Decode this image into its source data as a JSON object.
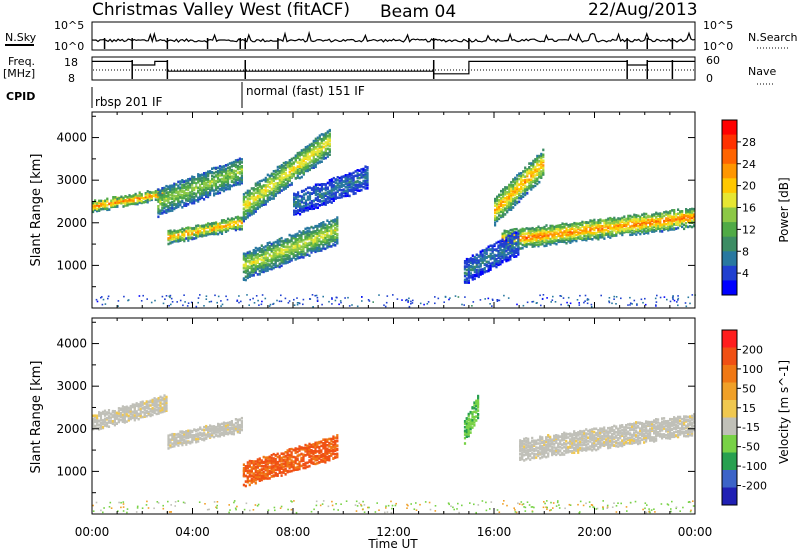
{
  "header": {
    "station": "Christmas Valley West (fitACF)",
    "beam": "Beam 04",
    "date": "22/Aug/2013"
  },
  "status": {
    "nsky_label": "N.Sky",
    "nsky_ticks": [
      "10^5",
      "10^0"
    ],
    "nsearch_label": "N.Search",
    "nsearch_ticks": [
      "10^5",
      "10^0"
    ],
    "freq_label": [
      "Freq.",
      "[MHz]"
    ],
    "freq_ticks": [
      "18",
      "8"
    ],
    "nave_label": "Nave",
    "nave_ticks": [
      "60",
      "0"
    ],
    "cpid_label": "CPID",
    "cpid_segments": [
      {
        "name": "rbsp 201 IF",
        "start_hour": 0,
        "end_hour": 6.0
      },
      {
        "name": "normal (fast) 151 IF",
        "start_hour": 6.0,
        "end_hour": 24
      }
    ],
    "freq_steps": [
      {
        "start_hour": 0.0,
        "mhz": 16.5
      },
      {
        "start_hour": 1.6,
        "mhz": 14.5
      },
      {
        "start_hour": 2.5,
        "mhz": 16.5
      },
      {
        "start_hour": 3.0,
        "mhz": 11.0
      },
      {
        "start_hour": 13.6,
        "mhz": 9.5
      },
      {
        "start_hour": 15.0,
        "mhz": 16.5
      },
      {
        "start_hour": 21.3,
        "mhz": 14.5
      },
      {
        "start_hour": 22.1,
        "mhz": 16.5
      }
    ]
  },
  "chart_data": [
    {
      "type": "heatmap",
      "panel": "power",
      "ylabel": "Slant Range [km]",
      "xlabel": "Time UT",
      "xlim": [
        0,
        24
      ],
      "ylim": [
        0,
        4600
      ],
      "xticks": [
        "00:00",
        "04:00",
        "08:00",
        "12:00",
        "16:00",
        "20:00",
        "00:00"
      ],
      "yticks": [
        1000,
        2000,
        3000,
        4000
      ],
      "colorbar": {
        "label": "Power [dB]",
        "ticks": [
          "28",
          "24",
          "20",
          "16",
          "12",
          "8",
          "4"
        ],
        "colors": [
          "#0000ff",
          "#2040d0",
          "#2878a0",
          "#3c8c64",
          "#50aa46",
          "#8cc846",
          "#e6e632",
          "#ffc800",
          "#ff9600",
          "#ff6400",
          "#ff3200",
          "#ff0000"
        ]
      },
      "features": [
        {
          "name": "F-region band",
          "t_start": 0.0,
          "t_end": 2.9,
          "range_start_km": 2300,
          "range_end_km": 2850,
          "peak_db": 24
        },
        {
          "name": "rising echo",
          "t_start": 3.0,
          "t_end": 6.0,
          "range_start_km": 1550,
          "range_end_km": 2200,
          "peak_db": 22
        },
        {
          "name": "upper rising echo",
          "t_start": 2.6,
          "t_end": 6.0,
          "range_start_km": 2200,
          "range_end_km": 3600,
          "peak_db": 14
        },
        {
          "name": "morning rising echo",
          "t_start": 6.0,
          "t_end": 9.8,
          "range_start_km": 700,
          "range_end_km": 2200,
          "peak_db": 16
        },
        {
          "name": "second-hop echo",
          "t_start": 6.0,
          "t_end": 9.5,
          "range_start_km": 2100,
          "range_end_km": 4300,
          "peak_db": 18
        },
        {
          "name": "weak scatter",
          "t_start": 8.0,
          "t_end": 11.0,
          "range_start_km": 2200,
          "range_end_km": 3400,
          "peak_db": 6
        },
        {
          "name": "afternoon echo",
          "t_start": 16.3,
          "t_end": 24.0,
          "range_start_km": 1400,
          "range_end_km": 2400,
          "peak_db": 24
        },
        {
          "name": "afternoon descending",
          "t_start": 16.0,
          "t_end": 18.0,
          "range_start_km": 2000,
          "range_end_km": 3800,
          "peak_db": 22
        },
        {
          "name": "evening near-range",
          "t_start": 14.8,
          "t_end": 17.0,
          "range_start_km": 600,
          "range_end_km": 1900,
          "peak_db": 6
        }
      ]
    },
    {
      "type": "heatmap",
      "panel": "velocity",
      "ylabel": "Slant Range [km]",
      "xlabel": "Time UT",
      "xlim": [
        0,
        24
      ],
      "ylim": [
        0,
        4600
      ],
      "xticks": [
        "00:00",
        "04:00",
        "08:00",
        "12:00",
        "16:00",
        "20:00",
        "00:00"
      ],
      "yticks": [
        1000,
        2000,
        3000,
        4000
      ],
      "colorbar": {
        "label": "Velocity [m s^-1]",
        "ticks": [
          "200",
          "100",
          "50",
          "15",
          "-15",
          "-50",
          "-100",
          "-200"
        ],
        "colors": [
          "#2020b4",
          "#3c64c8",
          "#28a050",
          "#78d246",
          "#c0c0b8",
          "#f0c850",
          "#f0a028",
          "#f07814",
          "#f05014",
          "#ff1e1e"
        ]
      },
      "features": [
        {
          "name": "ground scatter band",
          "t_start": 0.0,
          "t_end": 3.0,
          "range_start_km": 2000,
          "range_end_km": 2850,
          "velocity": 0
        },
        {
          "name": "ground scatter rising",
          "t_start": 3.0,
          "t_end": 6.0,
          "range_start_km": 1600,
          "range_end_km": 2300,
          "velocity": 0
        },
        {
          "name": "receding morning echo",
          "t_start": 6.0,
          "t_end": 9.8,
          "range_start_km": 700,
          "range_end_km": 1900,
          "velocity": -60
        },
        {
          "name": "ground scatter afternoon",
          "t_start": 17.0,
          "t_end": 24.0,
          "range_start_km": 1300,
          "range_end_km": 2400,
          "velocity": 0
        },
        {
          "name": "approaching scatter",
          "t_start": 14.8,
          "t_end": 15.4,
          "range_start_km": 1700,
          "range_end_km": 2900,
          "velocity": 40
        }
      ]
    }
  ]
}
